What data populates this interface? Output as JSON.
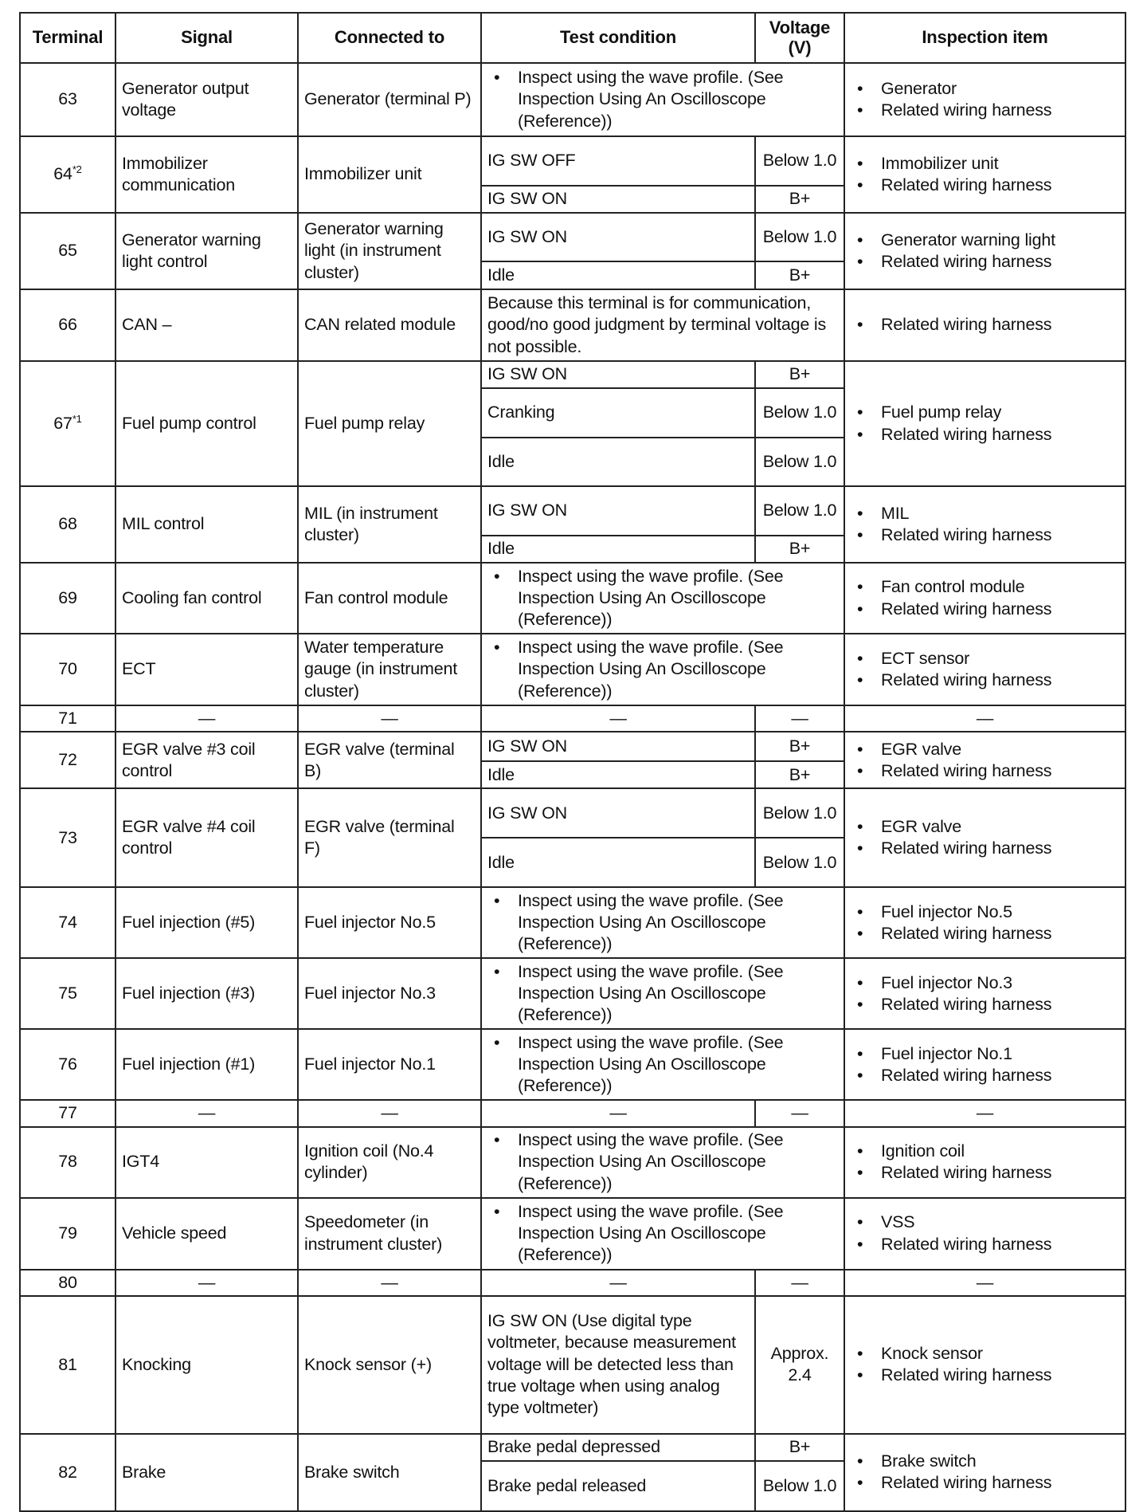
{
  "headers": [
    "Terminal",
    "Signal",
    "Connected to",
    "Test condition",
    "Voltage (V)",
    "Inspection item"
  ],
  "rows": [
    {
      "terminal": "63",
      "sup": "",
      "signal": "Generator output voltage",
      "connected": "Generator (terminal P)",
      "note": [
        "Inspect using the wave profile. (See Inspection Using An Oscilloscope (Reference))"
      ],
      "inspection": [
        "Generator",
        "Related wiring harness"
      ]
    },
    {
      "terminal": "64",
      "sup": "*2",
      "signal": "Immobilizer communication",
      "connected": "Immobilizer unit",
      "conditions": [
        {
          "text": "IG SW OFF",
          "voltage": "Below 1.0"
        },
        {
          "text": "IG SW ON",
          "voltage": "B+"
        }
      ],
      "inspection": [
        "Immobilizer unit",
        "Related wiring harness"
      ]
    },
    {
      "terminal": "65",
      "sup": "",
      "signal": "Generator warning light control",
      "connected": "Generator warning light (in instrument cluster)",
      "conditions": [
        {
          "text": "IG SW ON",
          "voltage": "Below 1.0"
        },
        {
          "text": "Idle",
          "voltage": "B+"
        }
      ],
      "inspection": [
        "Generator warning light",
        "Related wiring harness"
      ]
    },
    {
      "terminal": "66",
      "sup": "",
      "signal": "CAN –",
      "connected": "CAN related module",
      "plain": "Because this terminal is for communication, good/no good judgment by terminal voltage is not possible.",
      "inspection": [
        "Related wiring harness"
      ]
    },
    {
      "terminal": "67",
      "sup": "*1",
      "signal": "Fuel pump control",
      "connected": "Fuel pump relay",
      "conditions": [
        {
          "text": "IG SW ON",
          "voltage": "B+"
        },
        {
          "text": "Cranking",
          "voltage": "Below 1.0"
        },
        {
          "text": "Idle",
          "voltage": "Below 1.0"
        }
      ],
      "inspection": [
        "Fuel pump relay",
        "Related wiring harness"
      ]
    },
    {
      "terminal": "68",
      "sup": "",
      "signal": "MIL control",
      "connected": "MIL (in instrument cluster)",
      "conditions": [
        {
          "text": "IG SW ON",
          "voltage": "Below 1.0"
        },
        {
          "text": "Idle",
          "voltage": "B+"
        }
      ],
      "inspection": [
        "MIL",
        "Related wiring harness"
      ]
    },
    {
      "terminal": "69",
      "sup": "",
      "signal": "Cooling fan control",
      "connected": "Fan control module",
      "note": [
        "Inspect using the wave profile. (See Inspection Using An Oscilloscope (Reference))"
      ],
      "inspection": [
        "Fan control module",
        "Related wiring harness"
      ]
    },
    {
      "terminal": "70",
      "sup": "",
      "signal": "ECT",
      "connected": "Water temperature gauge (in instrument cluster)",
      "note": [
        "Inspect using the wave profile. (See Inspection Using An Oscilloscope (Reference))"
      ],
      "inspection": [
        "ECT sensor",
        "Related wiring harness"
      ]
    },
    {
      "terminal": "71",
      "sup": "",
      "dash": "—"
    },
    {
      "terminal": "72",
      "sup": "",
      "signal": "EGR valve #3 coil control",
      "connected": "EGR valve (terminal B)",
      "conditions": [
        {
          "text": "IG SW ON",
          "voltage": "B+"
        },
        {
          "text": "Idle",
          "voltage": "B+"
        }
      ],
      "inspection": [
        "EGR valve",
        "Related wiring harness"
      ]
    },
    {
      "terminal": "73",
      "sup": "",
      "signal": "EGR valve #4 coil control",
      "connected": "EGR valve (terminal F)",
      "conditions": [
        {
          "text": "IG SW ON",
          "voltage": "Below 1.0"
        },
        {
          "text": "Idle",
          "voltage": "Below 1.0"
        }
      ],
      "inspection": [
        "EGR valve",
        "Related wiring harness"
      ]
    },
    {
      "terminal": "74",
      "sup": "",
      "signal": "Fuel injection (#5)",
      "connected": "Fuel injector No.5",
      "note": [
        "Inspect using the wave profile. (See Inspection Using An Oscilloscope (Reference))"
      ],
      "inspection": [
        "Fuel injector No.5",
        "Related wiring harness"
      ]
    },
    {
      "terminal": "75",
      "sup": "",
      "signal": "Fuel injection (#3)",
      "connected": "Fuel injector No.3",
      "note": [
        "Inspect using the wave profile. (See Inspection Using An Oscilloscope (Reference))"
      ],
      "inspection": [
        "Fuel injector No.3",
        "Related wiring harness"
      ]
    },
    {
      "terminal": "76",
      "sup": "",
      "signal": "Fuel injection (#1)",
      "connected": "Fuel injector No.1",
      "note": [
        "Inspect using the wave profile. (See Inspection Using An Oscilloscope (Reference))"
      ],
      "inspection": [
        "Fuel injector No.1",
        "Related wiring harness"
      ]
    },
    {
      "terminal": "77",
      "sup": "",
      "dash": "—"
    },
    {
      "terminal": "78",
      "sup": "",
      "signal": "IGT4",
      "connected": "Ignition coil (No.4 cylinder)",
      "note": [
        "Inspect using the wave profile. (See Inspection Using An Oscilloscope (Reference))"
      ],
      "inspection": [
        "Ignition coil",
        "Related wiring harness"
      ]
    },
    {
      "terminal": "79",
      "sup": "",
      "signal": "Vehicle speed",
      "connected": "Speedometer (in instrument cluster)",
      "note": [
        "Inspect using the wave profile. (See Inspection Using An Oscilloscope (Reference))"
      ],
      "inspection": [
        "VSS",
        "Related wiring harness"
      ]
    },
    {
      "terminal": "80",
      "sup": "",
      "dash": "—"
    },
    {
      "terminal": "81",
      "sup": "",
      "signal": "Knocking",
      "connected": "Knock sensor (+)",
      "conditions": [
        {
          "text": "IG SW ON (Use digital type voltmeter, because measurement voltage will be detected less than true voltage when using analog type voltmeter)",
          "voltage": "Approx. 2.4"
        }
      ],
      "inspection": [
        "Knock sensor",
        "Related wiring harness"
      ]
    },
    {
      "terminal": "82",
      "sup": "",
      "signal": "Brake",
      "connected": "Brake switch",
      "conditions": [
        {
          "text": "Brake pedal depressed",
          "voltage": "B+"
        },
        {
          "text": "Brake pedal released",
          "voltage": "Below 1.0"
        }
      ],
      "inspection": [
        "Brake switch",
        "Related wiring harness"
      ]
    }
  ]
}
